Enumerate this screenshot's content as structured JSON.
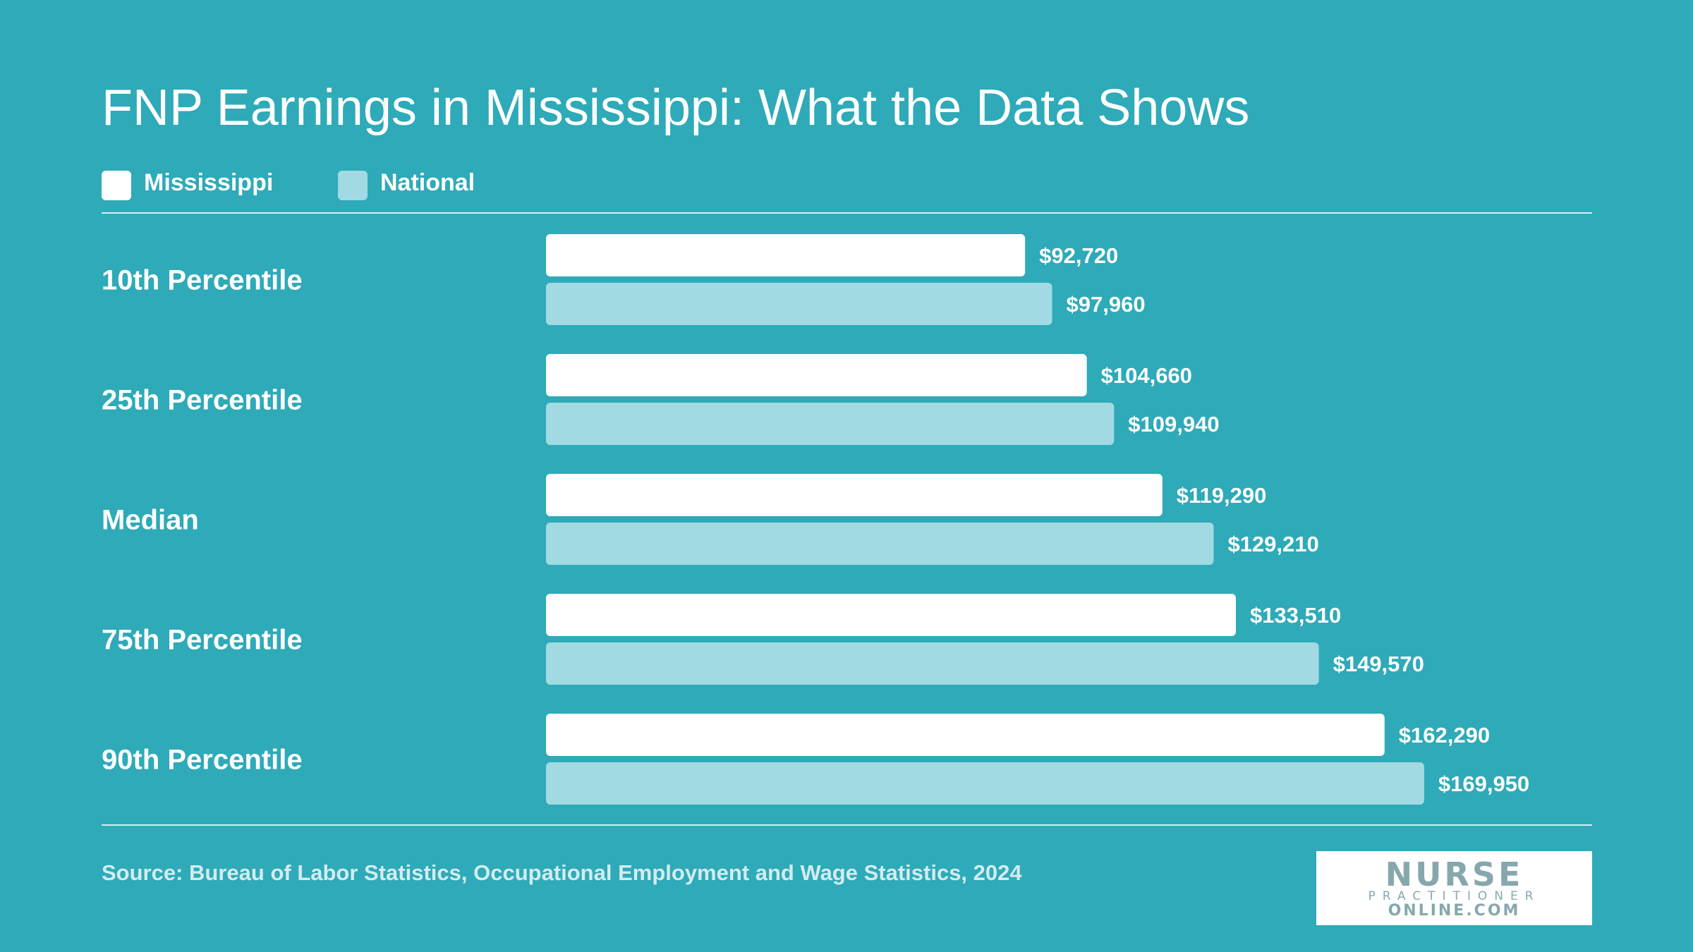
{
  "chart_data": {
    "type": "bar",
    "orientation": "horizontal",
    "title": "FNP Earnings in Mississippi: What the Data Shows",
    "categories": [
      "10th Percentile",
      "25th Percentile",
      "Median",
      "75th Percentile",
      "90th Percentile"
    ],
    "series": [
      {
        "name": "Mississippi",
        "color": "#ffffff",
        "values": [
          92720,
          104660,
          119290,
          133510,
          162290
        ],
        "labels": [
          "$92,720",
          "$104,660",
          "$119,290",
          "$133,510",
          "$162,290"
        ]
      },
      {
        "name": "National",
        "color": "#a1dae2",
        "values": [
          97960,
          109940,
          129210,
          149570,
          169950
        ],
        "labels": [
          "$97,960",
          "$109,940",
          "$129,210",
          "$149,570",
          "$169,950"
        ]
      }
    ],
    "legend_position": "top-left",
    "grid": false
  },
  "source": "Source: Bureau of Labor Statistics, Occupational Employment and Wage Statistics, 2024",
  "logo": {
    "line1": "NURSE",
    "line2": "PRACTITIONER",
    "line3": "ONLINE.COM"
  },
  "colors": {
    "background": "#2eaab8",
    "label_text": "#ffffff",
    "source_text": "#d3ecef"
  }
}
